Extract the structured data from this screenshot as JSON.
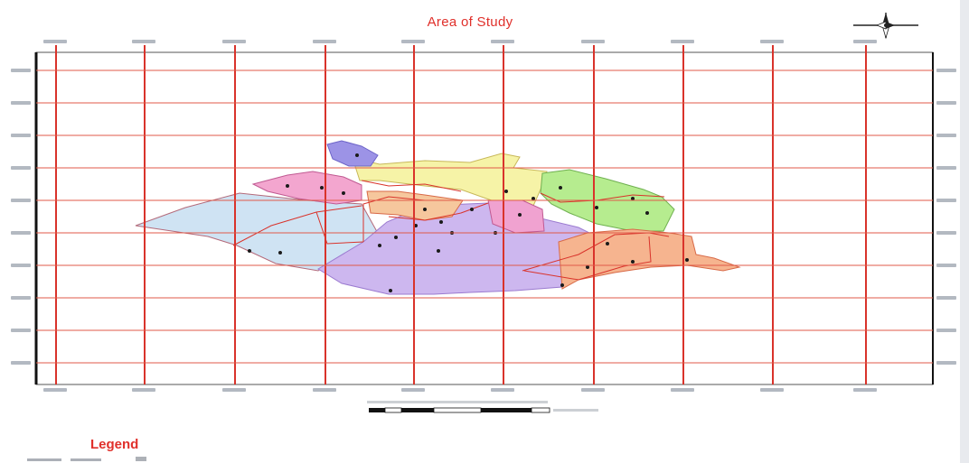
{
  "title": "Area of Study",
  "legend": {
    "title": "Legend"
  },
  "colors": {
    "title": "#e0302b",
    "grid": "#d9332b",
    "frame": "#111111",
    "region_blue": "#cfe3f3",
    "region_purple": "#cdb7ef",
    "region_yellow": "#f6f3a7",
    "region_green": "#b6ec8f",
    "region_pink": "#f3a6cf",
    "region_orange": "#f6b48f",
    "region_indigo": "#9c93e6"
  },
  "icons": {
    "north_arrow": "compass-rose-icon"
  }
}
